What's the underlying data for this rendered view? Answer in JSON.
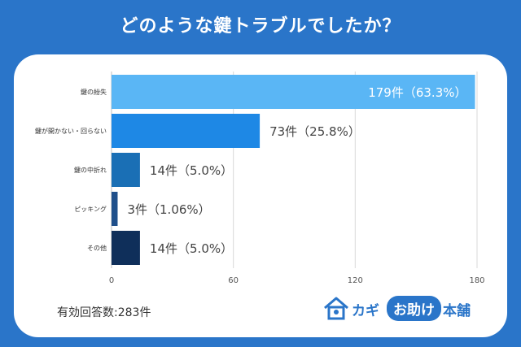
{
  "title": "どのような鍵トラブルでしたか？",
  "footer_text": "有効回答数:283件",
  "logo": {
    "part1": "カギ",
    "part2": "お助け",
    "part3": "本舗"
  },
  "colors": {
    "background": "#2a75c9",
    "card": "#ffffff"
  },
  "chart_data": {
    "type": "bar",
    "orientation": "horizontal",
    "categories": [
      "鍵の紛失",
      "鍵が開かない・回らない",
      "鍵の中折れ",
      "ピッキング",
      "その他"
    ],
    "values": [
      179,
      73,
      14,
      3,
      14
    ],
    "value_labels": [
      "179件（63.3%）",
      "73件（25.8%）",
      "14件（5.0%）",
      "3件（1.06%）",
      "14件（5.0%）"
    ],
    "bar_colors": [
      "#5ab6f5",
      "#1e88e5",
      "#1a6fb5",
      "#1f4f8a",
      "#0f2f5a"
    ],
    "xlim": [
      0,
      180
    ],
    "xticks": [
      0,
      60,
      120,
      180
    ],
    "grid": true
  }
}
